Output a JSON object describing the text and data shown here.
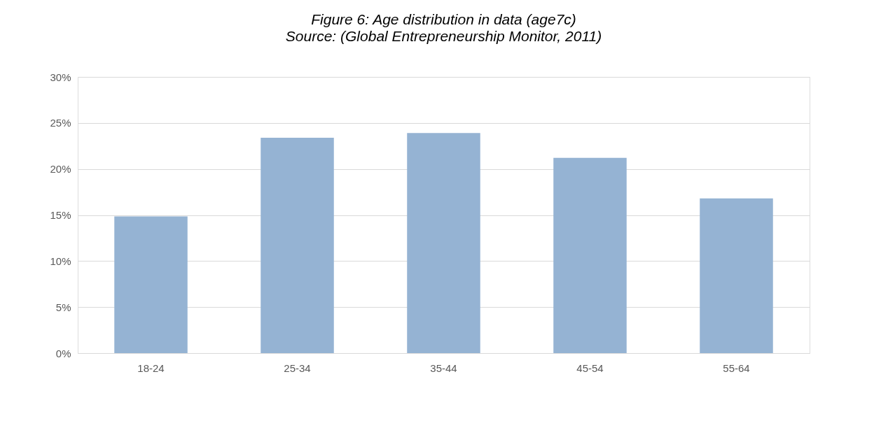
{
  "chart_data": {
    "type": "bar",
    "title": "Figure 6: Age distribution in data (age7c)",
    "subtitle": "Source: (Global Entrepreneurship Monitor, 2011)",
    "categories": [
      "18-24",
      "25-34",
      "35-44",
      "45-54",
      "55-64"
    ],
    "values": [
      0.1485,
      0.234,
      0.239,
      0.212,
      0.168
    ],
    "color": "#95b3d3",
    "ylim": [
      0,
      0.3
    ],
    "yticks": [
      {
        "value": 0,
        "label": "0%"
      },
      {
        "value": 0.05,
        "label": "5%"
      },
      {
        "value": 0.1,
        "label": "10%"
      },
      {
        "value": 0.15,
        "label": "15%"
      },
      {
        "value": 0.2,
        "label": "20%"
      },
      {
        "value": 0.25,
        "label": "25%"
      },
      {
        "value": 0.3,
        "label": "30%"
      }
    ],
    "grid": "y"
  }
}
